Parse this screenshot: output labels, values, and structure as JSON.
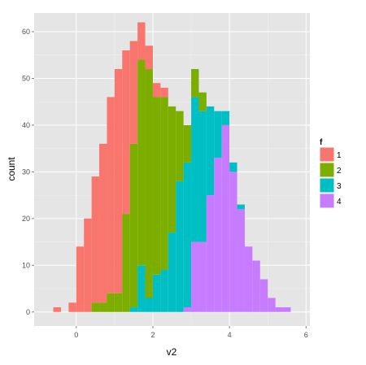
{
  "chart_data": {
    "type": "bar",
    "stacked": true,
    "bin_width": 0.2,
    "xlabel": "v2",
    "ylabel": "count",
    "xlim": [
      -1.1,
      6.1
    ],
    "ylim": [
      -3,
      64
    ],
    "x_ticks": [
      0,
      2,
      4,
      6
    ],
    "y_ticks": [
      0,
      10,
      20,
      30,
      40,
      50,
      60
    ],
    "grid": true,
    "legend": {
      "title": "f",
      "position": "right"
    },
    "x": [
      -0.5,
      -0.3,
      -0.1,
      0.1,
      0.3,
      0.5,
      0.7,
      0.9,
      1.1,
      1.3,
      1.5,
      1.7,
      1.9,
      2.1,
      2.3,
      2.5,
      2.7,
      2.9,
      3.1,
      3.3,
      3.5,
      3.7,
      3.9,
      4.1,
      4.3,
      4.5,
      4.7,
      4.9,
      5.1,
      5.3,
      5.5
    ],
    "series": [
      {
        "name": "1",
        "color": "#F8766D",
        "values": [
          1,
          0,
          2,
          14,
          20,
          27,
          34,
          42,
          48,
          35,
          22,
          8,
          5,
          3,
          2,
          0,
          0,
          0,
          0,
          0,
          0,
          0,
          0,
          0,
          0,
          0,
          0,
          0,
          0,
          0,
          0
        ]
      },
      {
        "name": "2",
        "color": "#7CAE00",
        "values": [
          0,
          0,
          0,
          0,
          0,
          2,
          2,
          4,
          4,
          21,
          35,
          44,
          49,
          38,
          37,
          27,
          15,
          8,
          6,
          4,
          0,
          0,
          0,
          0,
          0,
          0,
          0,
          0,
          0,
          0,
          0
        ]
      },
      {
        "name": "3",
        "color": "#00BFC4",
        "values": [
          0,
          0,
          0,
          0,
          0,
          0,
          0,
          0,
          0,
          0,
          1,
          10,
          3,
          8,
          9,
          17,
          28,
          31,
          31,
          28,
          19,
          10,
          3,
          2,
          1,
          0,
          0,
          0,
          0,
          0,
          0
        ]
      },
      {
        "name": "4",
        "color": "#C77CFF",
        "values": [
          0,
          0,
          0,
          0,
          0,
          0,
          0,
          0,
          0,
          0,
          0,
          0,
          0,
          0,
          0,
          0,
          0,
          1,
          15,
          15,
          25,
          33,
          40,
          30,
          22,
          14,
          11,
          7,
          3,
          1,
          1
        ]
      }
    ]
  }
}
